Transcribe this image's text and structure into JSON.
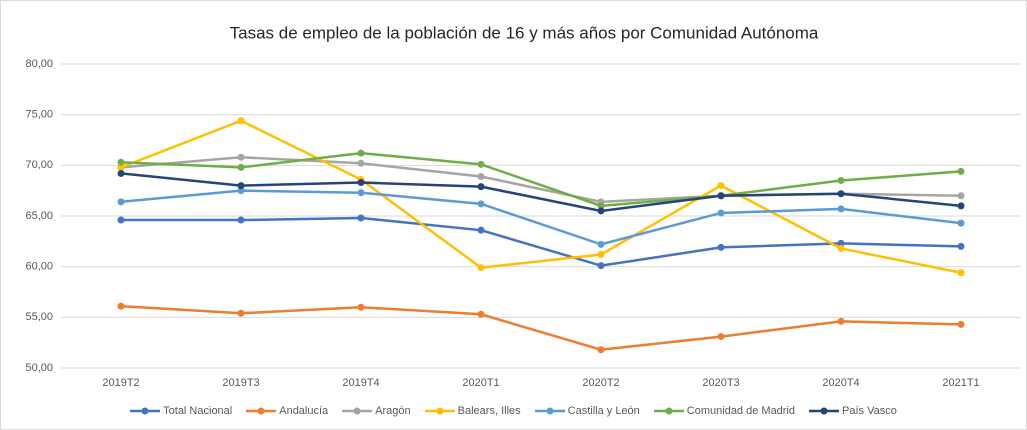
{
  "chart_data": {
    "type": "line",
    "title": "Tasas de empleo de la población de 16 y más años por Comunidad Autónoma",
    "categories": [
      "2019T2",
      "2019T3",
      "2019T4",
      "2020T1",
      "2020T2",
      "2020T3",
      "2020T4",
      "2021T1"
    ],
    "series": [
      {
        "name": "Total Nacional",
        "color": "#4472c4",
        "values": [
          64.6,
          64.6,
          64.8,
          63.6,
          60.1,
          61.9,
          62.3,
          62.0
        ]
      },
      {
        "name": "Andalucía",
        "color": "#ed7d31",
        "values": [
          56.1,
          55.4,
          56.0,
          55.3,
          51.8,
          53.1,
          54.6,
          54.3
        ]
      },
      {
        "name": "Aragón",
        "color": "#a5a5a5",
        "values": [
          69.8,
          70.8,
          70.2,
          68.9,
          66.4,
          67.0,
          67.2,
          67.0
        ]
      },
      {
        "name": "Balears, Illes",
        "color": "#ffc000",
        "values": [
          69.8,
          74.4,
          68.6,
          59.9,
          61.2,
          68.0,
          61.8,
          59.4
        ]
      },
      {
        "name": "Castilla y León",
        "color": "#5b9bd5",
        "values": [
          66.4,
          67.5,
          67.3,
          66.2,
          62.2,
          65.3,
          65.7,
          64.3
        ]
      },
      {
        "name": "Comunidad de Madrid",
        "color": "#70ad47",
        "values": [
          70.3,
          69.8,
          71.2,
          70.1,
          66.0,
          67.0,
          68.5,
          69.4
        ]
      },
      {
        "name": "País Vasco",
        "color": "#264478",
        "values": [
          69.2,
          68.0,
          68.3,
          67.9,
          65.5,
          67.0,
          67.2,
          66.0
        ]
      }
    ],
    "ylim": [
      50,
      80
    ],
    "yticks": [
      {
        "value": 50,
        "label": "50,00"
      },
      {
        "value": 55,
        "label": "55,00"
      },
      {
        "value": 60,
        "label": "60,00"
      },
      {
        "value": 65,
        "label": "65,00"
      },
      {
        "value": 70,
        "label": "70,00"
      },
      {
        "value": 75,
        "label": "75,00"
      },
      {
        "value": 80,
        "label": "80,00"
      }
    ],
    "grid": true,
    "legend": "bottom"
  }
}
